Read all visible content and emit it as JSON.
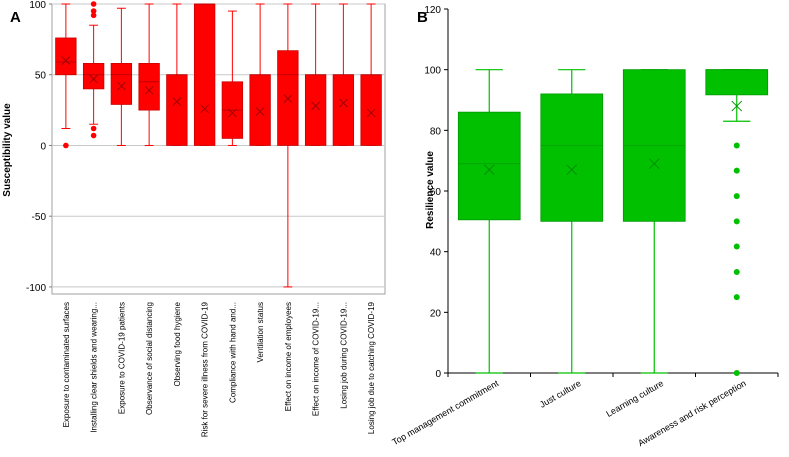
{
  "chart_data": [
    {
      "panel_label": "A",
      "type": "box",
      "ylabel": "Susceptibility value",
      "xlabel": "",
      "ylim": [
        -105,
        100
      ],
      "yticks": [
        100,
        50,
        0,
        -50,
        -100
      ],
      "grid": true,
      "color": "#ff0000",
      "categories": [
        "Exposure to contaminated surfaces",
        "Installing clear shields and wearing...",
        "Exposure to COVID-19 patients",
        "Observance of social distancing",
        "Observing food hygiene",
        "Risk for severe illness from COVID-19",
        "Compliance with hand and...",
        "Ventilation status",
        "Effect on income of employees",
        "Effect on income of COVID-19...",
        "Losing job during COVID-19...",
        "Losing job due to catching COVID-19"
      ],
      "boxes": [
        {
          "min": 12,
          "q1": 50,
          "median": 59,
          "q3": 76,
          "max": 100,
          "mean": 60,
          "outliers": [
            0
          ]
        },
        {
          "min": 15,
          "q1": 40,
          "median": 50,
          "q3": 58,
          "max": 85,
          "mean": 47,
          "outliers": [
            100,
            95,
            92,
            12,
            7
          ]
        },
        {
          "min": 0,
          "q1": 29,
          "median": 50,
          "q3": 58,
          "max": 97,
          "mean": 42,
          "outliers": []
        },
        {
          "min": 0,
          "q1": 25,
          "median": 45,
          "q3": 58,
          "max": 100,
          "mean": 39,
          "outliers": []
        },
        {
          "min": 0,
          "q1": 0,
          "median": 50,
          "q3": 50,
          "max": 100,
          "mean": 31,
          "outliers": []
        },
        {
          "min": 0,
          "q1": 0,
          "median": 100,
          "q3": 100,
          "max": 100,
          "mean": 26,
          "outliers": []
        },
        {
          "min": 0,
          "q1": 5,
          "median": 25,
          "q3": 45,
          "max": 95,
          "mean": 23,
          "outliers": []
        },
        {
          "min": 0,
          "q1": 0,
          "median": 50,
          "q3": 50,
          "max": 100,
          "mean": 24,
          "outliers": []
        },
        {
          "min": -100,
          "q1": 0,
          "median": 50,
          "q3": 67,
          "max": 100,
          "mean": 33,
          "outliers": []
        },
        {
          "min": 0,
          "q1": 0,
          "median": 50,
          "q3": 50,
          "max": 100,
          "mean": 28,
          "outliers": []
        },
        {
          "min": 0,
          "q1": 0,
          "median": 50,
          "q3": 50,
          "max": 100,
          "mean": 30,
          "outliers": []
        },
        {
          "min": 0,
          "q1": 0,
          "median": 50,
          "q3": 50,
          "max": 100,
          "mean": 23,
          "outliers": []
        }
      ]
    },
    {
      "panel_label": "B",
      "type": "box",
      "ylabel": "Resilience value",
      "xlabel": "",
      "ylim": [
        0,
        120
      ],
      "yticks": [
        0,
        20,
        40,
        60,
        80,
        100,
        120
      ],
      "grid": false,
      "color": "#00c000",
      "categories": [
        "Top management commitment",
        "Just culture",
        "Learning culture",
        "Awareness and risk perception"
      ],
      "boxes": [
        {
          "min": 0,
          "q1": 50.5,
          "median": 69,
          "q3": 86,
          "max": 100,
          "mean": 67,
          "outliers": []
        },
        {
          "min": 0,
          "q1": 50,
          "median": 75,
          "q3": 92,
          "max": 100,
          "mean": 67,
          "outliers": []
        },
        {
          "min": 0,
          "q1": 50,
          "median": 75,
          "q3": 100,
          "max": 100,
          "mean": 69,
          "outliers": []
        },
        {
          "min": 83,
          "q1": 91.7,
          "median": 100,
          "q3": 100,
          "max": 100,
          "mean": 88,
          "outliers": [
            75,
            66.7,
            58.3,
            50,
            41.7,
            33.3,
            25,
            0
          ]
        }
      ]
    }
  ]
}
